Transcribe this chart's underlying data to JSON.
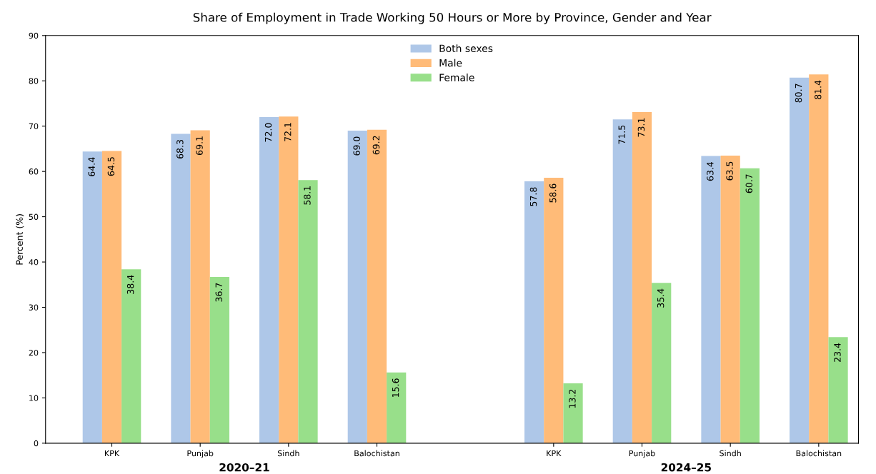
{
  "chart_data": {
    "type": "bar",
    "title": "Share of Employment in Trade Working 50 Hours or More by Province, Gender and Year",
    "ylabel": "Percent (%)",
    "categories": [
      "KPK",
      "Punjab",
      "Sindh",
      "Balochistan",
      null,
      "KPK",
      "Punjab",
      "Sindh",
      "Balochistan"
    ],
    "series": [
      {
        "name": "Both sexes",
        "color": "#aec7e8",
        "values": [
          64.4,
          68.3,
          72.0,
          69.0,
          null,
          57.8,
          71.5,
          63.4,
          80.7
        ],
        "value_labels": [
          "64.4",
          "68.3",
          "72.0",
          "69.0",
          null,
          "57.8",
          "71.5",
          "63.4",
          "80.7"
        ]
      },
      {
        "name": "Male",
        "color": "#ffbb78",
        "values": [
          64.5,
          69.1,
          72.1,
          69.2,
          null,
          58.6,
          73.1,
          63.5,
          81.4
        ],
        "value_labels": [
          "64.5",
          "69.1",
          "72.1",
          "69.2",
          null,
          "58.6",
          "73.1",
          "63.5",
          "81.4"
        ]
      },
      {
        "name": "Female",
        "color": "#98df8a",
        "values": [
          38.4,
          36.7,
          58.1,
          15.6,
          null,
          13.2,
          35.4,
          60.7,
          23.4
        ],
        "value_labels": [
          "38.4",
          "36.7",
          "58.1",
          "15.6",
          null,
          "13.2",
          "35.4",
          "60.7",
          "23.4"
        ]
      }
    ],
    "annotations": [
      "2020–21",
      "2024–25"
    ],
    "ylim": [
      0,
      90
    ],
    "yticks": [
      0,
      10,
      20,
      30,
      40,
      50,
      60,
      70,
      80,
      90
    ],
    "legend": "top",
    "grid": false
  }
}
